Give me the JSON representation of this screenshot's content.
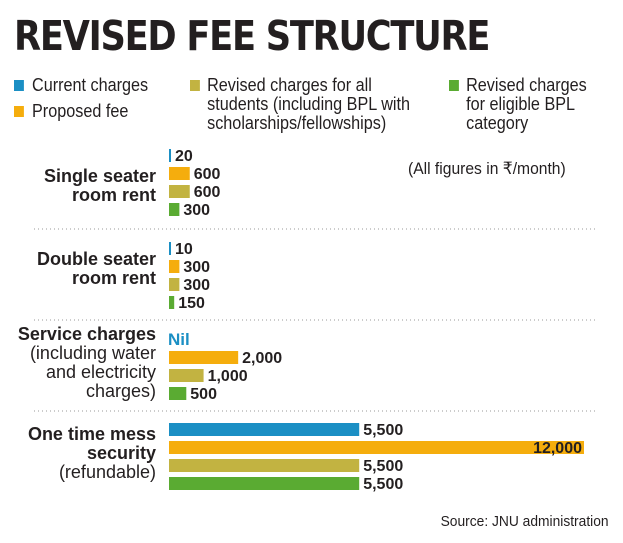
{
  "title": "REVISED FEE STRUCTURE",
  "legend": [
    {
      "label": "Current charges",
      "color": "#1b8fc4"
    },
    {
      "label": "Proposed fee",
      "color": "#f5ad0d"
    },
    {
      "label": "Revised charges for all\nstudents (including BPL with\nscholarships/fellowships)",
      "color": "#c2b341"
    },
    {
      "label": "Revised charges\nfor eligible BPL\ncategory",
      "color": "#5aab32"
    }
  ],
  "note": "(All figures in ₹/month)",
  "source": "Source: JNU administration",
  "chart_data": {
    "type": "bar",
    "orientation": "horizontal",
    "categories": [
      {
        "label": [
          "Single seater",
          "room rent"
        ],
        "bold_lines": 2
      },
      {
        "label": [
          "Double seater",
          "room rent"
        ],
        "bold_lines": 2
      },
      {
        "label": [
          "Service charges",
          "(including water",
          "and electricity",
          "charges)"
        ],
        "bold_lines": 1
      },
      {
        "label": [
          "One time mess",
          "security",
          "(refundable)"
        ],
        "bold_lines": 2
      }
    ],
    "series": [
      {
        "name": "Current charges",
        "color": "#1b8fc4",
        "values": [
          20,
          10,
          null,
          5500
        ],
        "labels": [
          "20",
          "10",
          "Nil",
          "5,500"
        ]
      },
      {
        "name": "Proposed fee",
        "color": "#f5ad0d",
        "values": [
          600,
          300,
          2000,
          12000
        ],
        "labels": [
          "600",
          "300",
          "2,000",
          "12,000"
        ]
      },
      {
        "name": "Revised charges for all students (including BPL with scholarships/fellowships)",
        "color": "#c2b341",
        "values": [
          600,
          300,
          1000,
          5500
        ],
        "labels": [
          "600",
          "300",
          "1,000",
          "5,500"
        ]
      },
      {
        "name": "Revised charges for eligible BPL category",
        "color": "#5aab32",
        "values": [
          300,
          150,
          500,
          5500
        ],
        "labels": [
          "300",
          "150",
          "500",
          "5,500"
        ]
      }
    ],
    "xlim": [
      0,
      12000
    ],
    "grid": false,
    "legend_position": "top"
  }
}
